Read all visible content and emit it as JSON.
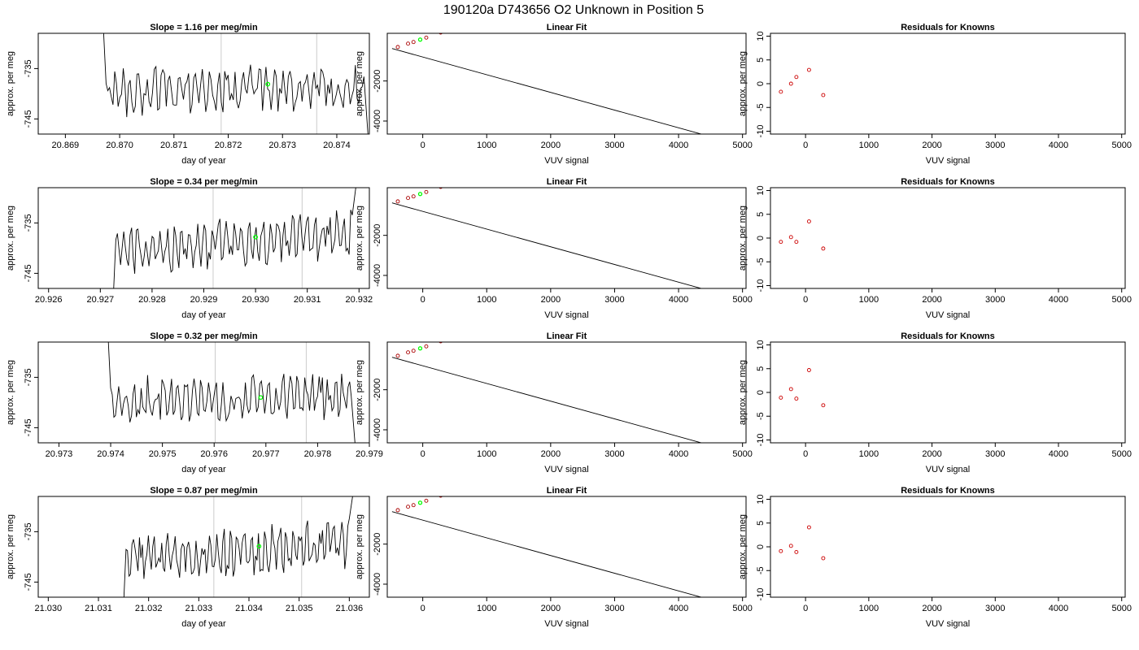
{
  "figure": {
    "title": "190120a      D743656   O2 Unknown in Position  5"
  },
  "chart_data": [
    {
      "type": "line",
      "panel": "timeseries-1",
      "title": "Slope =  1.16  per meg/min",
      "xlabel": "day of year",
      "ylabel": "approx. per meg",
      "xlim": [
        20.8685,
        20.8746
      ],
      "ylim": [
        -748.0,
        -728.0
      ],
      "xticks": [
        "20.869",
        "20.870",
        "20.871",
        "20.872",
        "20.873",
        "20.874"
      ],
      "yticks": [
        "-735",
        "-745"
      ],
      "xstart": 20.86975,
      "xend": 20.8745,
      "pre_top": -727,
      "post_bottom": -749,
      "vlines": [
        20.87187,
        20.87363
      ],
      "green_point": [
        20.87273,
        -738.1
      ]
    },
    {
      "type": "scatter",
      "panel": "fit-1",
      "title": "Linear Fit",
      "xlabel": "VUV signal",
      "ylabel": "approx. per meg",
      "xlim": [
        -555,
        5055
      ],
      "ylim": [
        -4650,
        380
      ],
      "xticks": [
        "0",
        "1000",
        "2000",
        "3000",
        "4000",
        "5000"
      ],
      "yticks": [
        "-2000",
        "-4000"
      ],
      "points": [
        [
          -390,
          -305
        ],
        [
          -230,
          -135
        ],
        [
          -145,
          -55
        ],
        [
          55,
          165
        ],
        [
          280,
          420
        ]
      ],
      "green_point": [
        -40,
        65
      ],
      "fit_line": [
        [
          -480,
          -380
        ],
        [
          4920,
          -5150
        ]
      ]
    },
    {
      "type": "scatter",
      "panel": "residuals-1",
      "title": "Residuals for Knowns",
      "xlabel": "VUV signal",
      "ylabel": "approx. per meg",
      "xlim": [
        -555,
        5055
      ],
      "ylim": [
        -10.6,
        10.6
      ],
      "xticks": [
        "0",
        "1000",
        "2000",
        "3000",
        "4000",
        "5000"
      ],
      "yticks": [
        "10",
        "5",
        "0",
        "-5",
        "-10"
      ],
      "points": [
        [
          -390,
          -1.7
        ],
        [
          -230,
          0.0
        ],
        [
          -145,
          1.4
        ],
        [
          55,
          2.9
        ],
        [
          280,
          -2.4
        ]
      ]
    },
    {
      "type": "line",
      "panel": "timeseries-2",
      "title": "Slope =  0.34  per meg/min",
      "xlabel": "day of year",
      "ylabel": "approx. per meg",
      "xlim": [
        20.9258,
        20.9322
      ],
      "ylim": [
        -748.0,
        -728.0
      ],
      "xticks": [
        "20.926",
        "20.927",
        "20.928",
        "20.929",
        "20.930",
        "20.931",
        "20.932"
      ],
      "yticks": [
        "-735",
        "-745"
      ],
      "xstart": 20.9273,
      "xend": 20.93187,
      "pre_top": -750,
      "post_bottom": -727,
      "vlines": [
        20.92918,
        20.9309
      ],
      "green_point": [
        20.93,
        -737.8
      ]
    },
    {
      "type": "scatter",
      "panel": "fit-2",
      "title": "Linear Fit",
      "xlabel": "VUV signal",
      "ylabel": "approx. per meg",
      "xlim": [
        -555,
        5055
      ],
      "ylim": [
        -4650,
        380
      ],
      "xticks": [
        "0",
        "1000",
        "2000",
        "3000",
        "4000",
        "5000"
      ],
      "yticks": [
        "-2000",
        "-4000"
      ],
      "points": [
        [
          -390,
          -305
        ],
        [
          -230,
          -135
        ],
        [
          -145,
          -55
        ],
        [
          55,
          165
        ],
        [
          280,
          420
        ]
      ],
      "green_point": [
        -40,
        65
      ],
      "fit_line": [
        [
          -480,
          -380
        ],
        [
          4920,
          -5150
        ]
      ]
    },
    {
      "type": "scatter",
      "panel": "residuals-2",
      "title": "Residuals for Knowns",
      "xlabel": "VUV signal",
      "ylabel": "approx. per meg",
      "xlim": [
        -555,
        5055
      ],
      "ylim": [
        -10.6,
        10.6
      ],
      "xticks": [
        "0",
        "1000",
        "2000",
        "3000",
        "4000",
        "5000"
      ],
      "yticks": [
        "10",
        "5",
        "0",
        "-5",
        "-10"
      ],
      "points": [
        [
          -390,
          -0.8
        ],
        [
          -230,
          0.2
        ],
        [
          -145,
          -0.8
        ],
        [
          55,
          3.5
        ],
        [
          280,
          -2.2
        ]
      ]
    },
    {
      "type": "line",
      "panel": "timeseries-3",
      "title": "Slope =  0.32  per meg/min",
      "xlabel": "day of year",
      "ylabel": "approx. per meg",
      "xlim": [
        20.9726,
        20.979
      ],
      "ylim": [
        -748.0,
        -728.0
      ],
      "xticks": [
        "20.973",
        "20.974",
        "20.975",
        "20.976",
        "20.977",
        "20.978",
        "20.979"
      ],
      "yticks": [
        "-735",
        "-745"
      ],
      "xstart": 20.974,
      "xend": 20.97865,
      "pre_top": -727,
      "post_bottom": -749,
      "vlines": [
        20.97602,
        20.97778
      ],
      "green_point": [
        20.9769,
        -739.0
      ]
    },
    {
      "type": "scatter",
      "panel": "fit-3",
      "title": "Linear Fit",
      "xlabel": "VUV signal",
      "ylabel": "approx. per meg",
      "xlim": [
        -555,
        5055
      ],
      "ylim": [
        -4650,
        380
      ],
      "xticks": [
        "0",
        "1000",
        "2000",
        "3000",
        "4000",
        "5000"
      ],
      "yticks": [
        "-2000",
        "-4000"
      ],
      "points": [
        [
          -390,
          -305
        ],
        [
          -230,
          -135
        ],
        [
          -145,
          -55
        ],
        [
          55,
          165
        ],
        [
          280,
          420
        ]
      ],
      "green_point": [
        -40,
        65
      ],
      "fit_line": [
        [
          -480,
          -380
        ],
        [
          4920,
          -5150
        ]
      ]
    },
    {
      "type": "scatter",
      "panel": "residuals-3",
      "title": "Residuals for Knowns",
      "xlabel": "VUV signal",
      "ylabel": "approx. per meg",
      "xlim": [
        -555,
        5055
      ],
      "ylim": [
        -10.6,
        10.6
      ],
      "xticks": [
        "0",
        "1000",
        "2000",
        "3000",
        "4000",
        "5000"
      ],
      "yticks": [
        "10",
        "5",
        "0",
        "-5",
        "-10"
      ],
      "points": [
        [
          -390,
          -1.1
        ],
        [
          -230,
          0.7
        ],
        [
          -145,
          -1.3
        ],
        [
          55,
          4.7
        ],
        [
          280,
          -2.7
        ]
      ]
    },
    {
      "type": "line",
      "panel": "timeseries-4",
      "title": "Slope =  0.87  per meg/min",
      "xlabel": "day of year",
      "ylabel": "approx. per meg",
      "xlim": [
        21.0298,
        21.0364
      ],
      "ylim": [
        -748.0,
        -728.0
      ],
      "xticks": [
        "21.030",
        "21.031",
        "21.032",
        "21.033",
        "21.034",
        "21.035",
        "21.036"
      ],
      "yticks": [
        "-735",
        "-745"
      ],
      "xstart": 21.03155,
      "xend": 21.036,
      "pre_top": -750,
      "post_bottom": -727,
      "vlines": [
        21.0333,
        21.03505
      ],
      "green_point": [
        21.0342,
        -737.9
      ]
    },
    {
      "type": "scatter",
      "panel": "fit-4",
      "title": "Linear Fit",
      "xlabel": "VUV signal",
      "ylabel": "approx. per meg",
      "xlim": [
        -555,
        5055
      ],
      "ylim": [
        -4650,
        380
      ],
      "xticks": [
        "0",
        "1000",
        "2000",
        "3000",
        "4000",
        "5000"
      ],
      "yticks": [
        "-2000",
        "-4000"
      ],
      "points": [
        [
          -390,
          -305
        ],
        [
          -230,
          -135
        ],
        [
          -145,
          -55
        ],
        [
          55,
          165
        ],
        [
          280,
          420
        ]
      ],
      "green_point": [
        -40,
        65
      ],
      "fit_line": [
        [
          -480,
          -380
        ],
        [
          4920,
          -5150
        ]
      ]
    },
    {
      "type": "scatter",
      "panel": "residuals-4",
      "title": "Residuals for Knowns",
      "xlabel": "VUV signal",
      "ylabel": "approx. per meg",
      "xlim": [
        -555,
        5055
      ],
      "ylim": [
        -10.6,
        10.6
      ],
      "xticks": [
        "0",
        "1000",
        "2000",
        "3000",
        "4000",
        "5000"
      ],
      "yticks": [
        "10",
        "5",
        "0",
        "-5",
        "-10"
      ],
      "points": [
        [
          -390,
          -0.9
        ],
        [
          -230,
          0.2
        ],
        [
          -145,
          -1.1
        ],
        [
          55,
          4.1
        ],
        [
          280,
          -2.4
        ]
      ]
    }
  ],
  "colors": {
    "series": "#000000",
    "green_marker": "#00ff00",
    "knowns_marker": "#cc0000",
    "vline": "#cccccc"
  }
}
